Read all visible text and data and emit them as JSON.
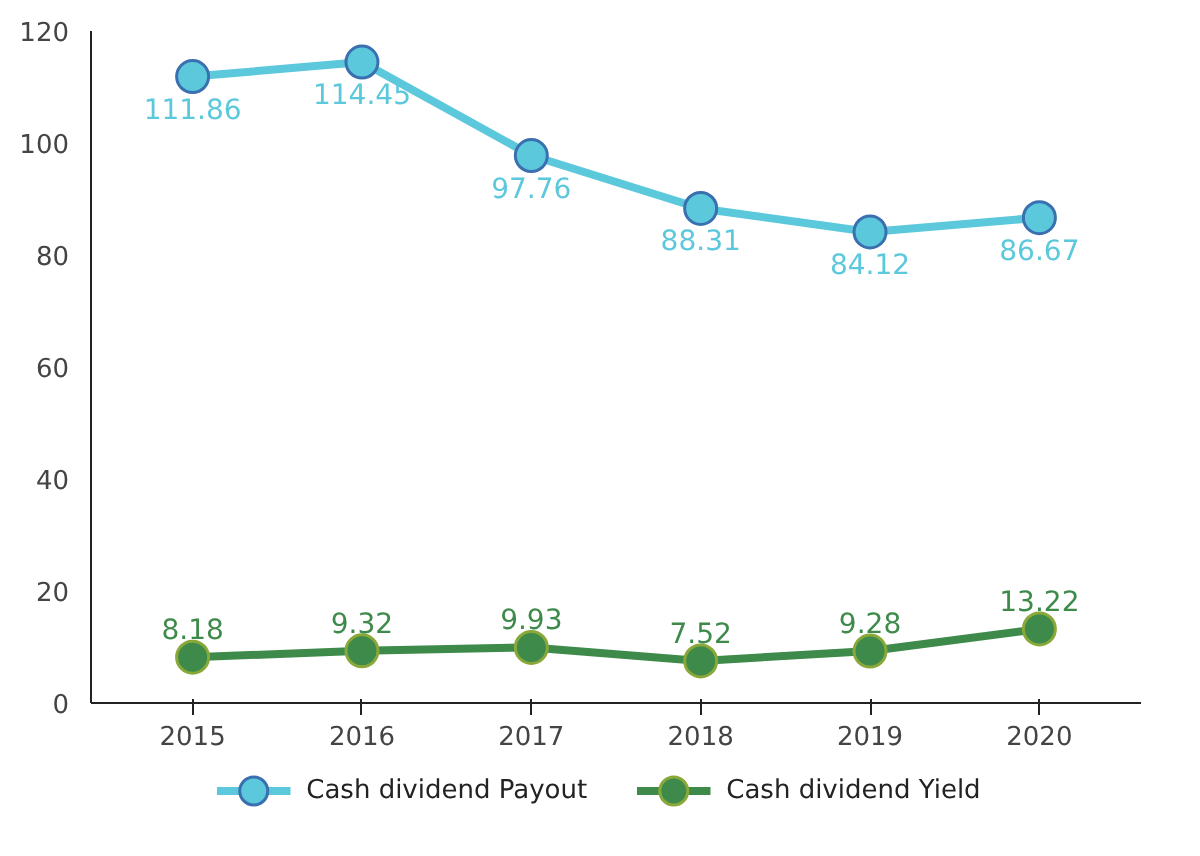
{
  "chart_data": {
    "type": "line",
    "categories": [
      "2015",
      "2016",
      "2017",
      "2018",
      "2019",
      "2020"
    ],
    "series": [
      {
        "name": "Cash dividend Payout",
        "color": "#5bc8dc",
        "values": [
          111.86,
          114.45,
          97.76,
          88.31,
          84.12,
          86.67
        ]
      },
      {
        "name": "Cash dividend Yield",
        "color": "#3d8a4a",
        "values": [
          8.18,
          9.32,
          9.93,
          7.52,
          9.28,
          13.22
        ]
      }
    ],
    "ylim": [
      0,
      120
    ],
    "yticks": [
      0,
      20,
      40,
      60,
      80,
      100,
      120
    ],
    "grid": false,
    "legend": "bottom",
    "marker": "circle",
    "data_labels": true
  }
}
